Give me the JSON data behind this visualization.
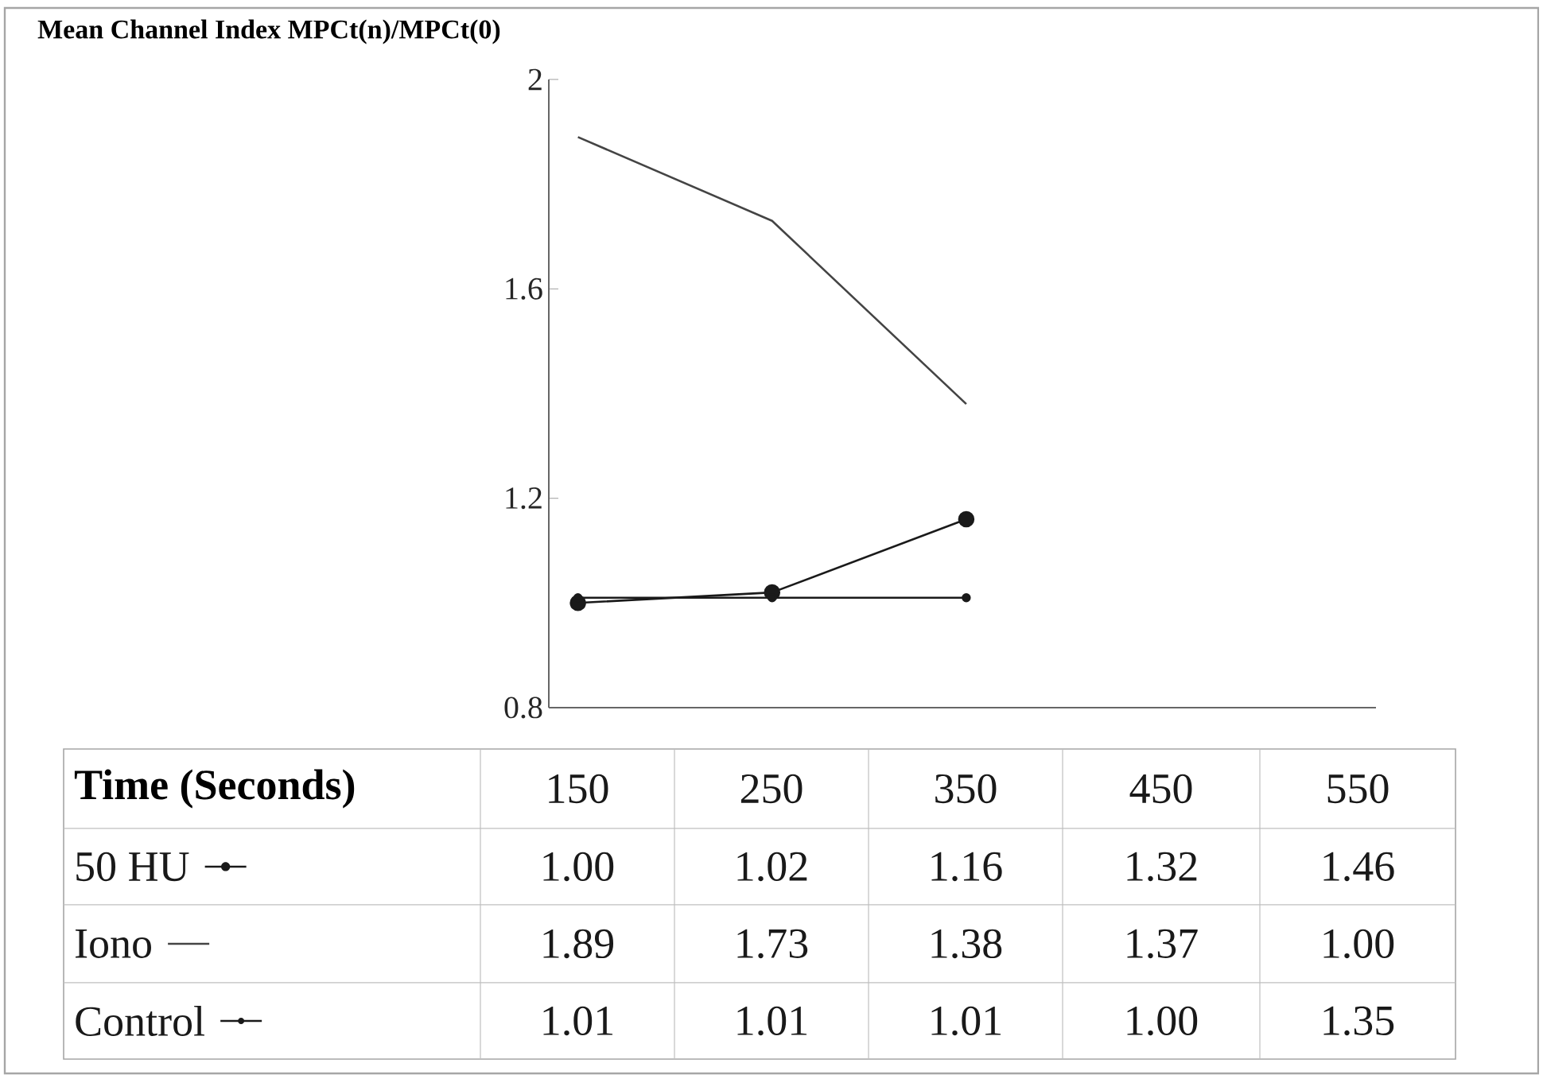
{
  "chart_data": {
    "type": "line",
    "title": "Mean Channel Index MPCt(n)/MPCt(0)",
    "xlabel": "Time (Seconds)",
    "categories": [
      "150",
      "250",
      "350",
      "450",
      "550"
    ],
    "series": [
      {
        "name": "50 HU",
        "color": "#1a1a1a",
        "marker": "circle",
        "values": [
          1.0,
          1.02,
          1.16,
          null,
          null
        ],
        "value_labels": [
          "1.00",
          "1.02",
          "1.16",
          "1.32",
          "1.46"
        ]
      },
      {
        "name": "Iono",
        "color": "#444444",
        "marker": "none",
        "values": [
          1.89,
          1.73,
          1.38,
          null,
          null
        ],
        "value_labels": [
          "1.89",
          "1.73",
          "1.38",
          "1.37",
          "1.00"
        ]
      },
      {
        "name": "Control",
        "color": "#1a1a1a",
        "marker": "dot",
        "values": [
          1.01,
          1.01,
          1.01,
          null,
          null
        ],
        "value_labels": [
          "1.01",
          "1.01",
          "1.01",
          "1.00",
          "1.35"
        ]
      }
    ],
    "ylim": [
      0.8,
      2
    ],
    "yticks": [
      0.8,
      1.2,
      1.6,
      2
    ],
    "grid": false,
    "legend": "bottom",
    "line_style": "solid"
  }
}
